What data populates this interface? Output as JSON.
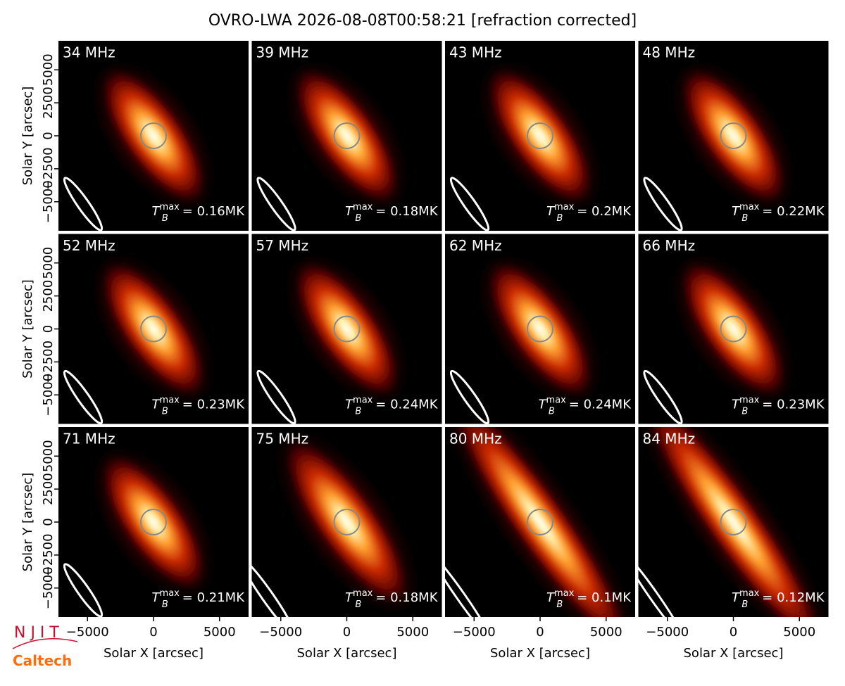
{
  "chart_data": {
    "type": "image-grid",
    "title": "OVRO-LWA 2026-08-08T00:58:21 [refraction corrected]",
    "xlabel": "Solar X [arcsec]",
    "ylabel": "Solar Y [arcsec]",
    "xlim": [
      -7200,
      7200
    ],
    "ylim": [
      -7200,
      7200
    ],
    "xticks": [
      {
        "value": -5000,
        "label": "−5000"
      },
      0,
      5000
    ],
    "yticks": [
      {
        "value": -5000,
        "label": "−5000"
      },
      {
        "value": -2500,
        "label": "−2500"
      },
      0,
      2500,
      5000
    ],
    "tb_symbol": "T",
    "tb_sub": "B",
    "tb_sup": "max",
    "panels": [
      {
        "label": "34 MHz",
        "annotation": "= 0.16MK"
      },
      {
        "label": "39 MHz",
        "annotation": "= 0.18MK"
      },
      {
        "label": "43 MHz",
        "annotation": "= 0.2MK"
      },
      {
        "label": "48 MHz",
        "annotation": "= 0.22MK"
      },
      {
        "label": "52 MHz",
        "annotation": "= 0.23MK"
      },
      {
        "label": "57 MHz",
        "annotation": "= 0.24MK"
      },
      {
        "label": "62 MHz",
        "annotation": "= 0.24MK"
      },
      {
        "label": "66 MHz",
        "annotation": "= 0.23MK"
      },
      {
        "label": "71 MHz",
        "annotation": "= 0.21MK"
      },
      {
        "label": "75 MHz",
        "annotation": "= 0.18MK"
      },
      {
        "label": "80 MHz",
        "annotation": "= 0.1MK"
      },
      {
        "label": "84 MHz",
        "annotation": "= 0.12MK"
      }
    ]
  },
  "logos": {
    "njit": "N J I T",
    "caltech": "Caltech"
  }
}
